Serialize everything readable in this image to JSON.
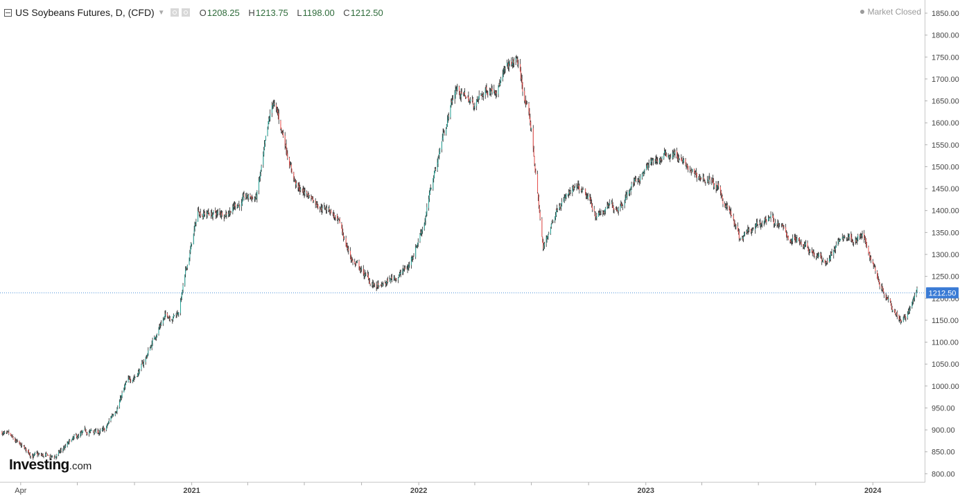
{
  "header": {
    "title": "US Soybeans Futures, D, (CFD)",
    "ohlc": [
      {
        "key": "O",
        "value": "1208.25"
      },
      {
        "key": "H",
        "value": "1213.75"
      },
      {
        "key": "L",
        "value": "1198.00"
      },
      {
        "key": "C",
        "value": "1212.50"
      }
    ],
    "status": "Market Closed"
  },
  "branding": {
    "name": "Investing",
    "suffix": ".com"
  },
  "colors": {
    "up": "#26a69a",
    "down": "#ef5350",
    "wick": "#222222",
    "price_line": "#4a90d9",
    "price_label_bg": "#3a7bd5"
  },
  "chart_data": {
    "type": "candlestick",
    "x_tick_labels": [
      "Apr",
      "2021",
      "2022",
      "2023",
      "2024"
    ],
    "y_ticks": [
      800,
      850,
      900,
      950,
      1000,
      1050,
      1100,
      1150,
      1200,
      1250,
      1300,
      1350,
      1400,
      1450,
      1500,
      1550,
      1600,
      1650,
      1700,
      1750,
      1800,
      1850
    ],
    "y_tick_labels": [
      "800.00",
      "850.00",
      "900.00",
      "950.00",
      "1000.00",
      "1050.00",
      "1100.00",
      "1150.00",
      "1200.00",
      "1250.00",
      "1300.00",
      "1350.00",
      "1400.00",
      "1450.00",
      "1500.00",
      "1550.00",
      "1600.00",
      "1650.00",
      "1700.00",
      "1750.00",
      "1800.00",
      "1850.00"
    ],
    "ylim": [
      780,
      1880
    ],
    "date_range": [
      "2020-03",
      "2024-03"
    ],
    "last_price": 1212.5,
    "last_price_label": "1212.50",
    "trend_path": [
      [
        "2020-03-02",
        895
      ],
      [
        "2020-03-20",
        870
      ],
      [
        "2020-04-10",
        848
      ],
      [
        "2020-05-01",
        838
      ],
      [
        "2020-05-25",
        835
      ],
      [
        "2020-06-20",
        870
      ],
      [
        "2020-07-20",
        893
      ],
      [
        "2020-08-15",
        895
      ],
      [
        "2020-09-15",
        995
      ],
      [
        "2020-10-15",
        1050
      ],
      [
        "2020-11-15",
        1155
      ],
      [
        "2020-12-10",
        1170
      ],
      [
        "2021-01-12",
        1400
      ],
      [
        "2021-02-15",
        1390
      ],
      [
        "2021-03-15",
        1420
      ],
      [
        "2021-04-15",
        1430
      ],
      [
        "2021-05-12",
        1640
      ],
      [
        "2021-06-01",
        1550
      ],
      [
        "2021-06-20",
        1450
      ],
      [
        "2021-07-15",
        1430
      ],
      [
        "2021-08-15",
        1400
      ],
      [
        "2021-09-15",
        1290
      ],
      [
        "2021-10-15",
        1235
      ],
      [
        "2021-11-01",
        1220
      ],
      [
        "2021-11-20",
        1245
      ],
      [
        "2021-12-15",
        1270
      ],
      [
        "2022-01-10",
        1380
      ],
      [
        "2022-02-10",
        1580
      ],
      [
        "2022-03-01",
        1680
      ],
      [
        "2022-04-01",
        1640
      ],
      [
        "2022-05-01",
        1690
      ],
      [
        "2022-06-08",
        1740
      ],
      [
        "2022-07-01",
        1580
      ],
      [
        "2022-07-20",
        1310
      ],
      [
        "2022-08-15",
        1430
      ],
      [
        "2022-09-15",
        1440
      ],
      [
        "2022-10-15",
        1390
      ],
      [
        "2022-11-15",
        1410
      ],
      [
        "2022-12-15",
        1470
      ],
      [
        "2023-01-15",
        1510
      ],
      [
        "2023-02-15",
        1535
      ],
      [
        "2023-03-15",
        1480
      ],
      [
        "2023-04-15",
        1470
      ],
      [
        "2023-05-15",
        1400
      ],
      [
        "2023-06-01",
        1330
      ],
      [
        "2023-06-25",
        1350
      ],
      [
        "2023-07-20",
        1390
      ],
      [
        "2023-08-15",
        1340
      ],
      [
        "2023-09-15",
        1330
      ],
      [
        "2023-10-15",
        1280
      ],
      [
        "2023-11-15",
        1340
      ],
      [
        "2023-12-15",
        1340
      ],
      [
        "2024-01-15",
        1230
      ],
      [
        "2024-02-15",
        1160
      ],
      [
        "2024-03-01",
        1180
      ],
      [
        "2024-03-12",
        1212.5
      ]
    ]
  }
}
